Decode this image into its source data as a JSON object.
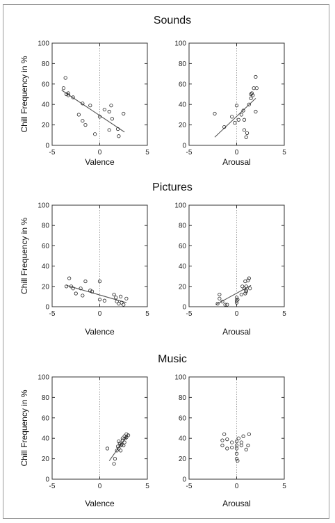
{
  "figure": {
    "sections": [
      "Sounds",
      "Pictures",
      "Music"
    ],
    "ylabel": "Chill Frequency in %"
  },
  "chart_data": [
    {
      "type": "scatter",
      "group": "Sounds",
      "xlabel": "Valence",
      "ylabel": "Chill Frequency in %",
      "xlim": [
        -5,
        5
      ],
      "ylim": [
        0,
        100
      ],
      "xticks": [
        -5,
        0,
        5
      ],
      "yticks": [
        0,
        20,
        40,
        60,
        80,
        100
      ],
      "points": [
        [
          -3.8,
          56
        ],
        [
          -3.6,
          66
        ],
        [
          -3.5,
          50
        ],
        [
          -3.3,
          49
        ],
        [
          -3.3,
          51
        ],
        [
          -2.8,
          47
        ],
        [
          -2.2,
          30
        ],
        [
          -1.8,
          41
        ],
        [
          -1.8,
          24
        ],
        [
          -1.5,
          20
        ],
        [
          -1,
          39
        ],
        [
          -0.5,
          11
        ],
        [
          0,
          28
        ],
        [
          0.5,
          35
        ],
        [
          1,
          33
        ],
        [
          1,
          15
        ],
        [
          1.2,
          39
        ],
        [
          1.3,
          26
        ],
        [
          1.9,
          16
        ],
        [
          2,
          9
        ],
        [
          2.5,
          31
        ]
      ],
      "fit": [
        [
          -4,
          54
        ],
        [
          2.6,
          13
        ]
      ]
    },
    {
      "type": "scatter",
      "group": "Sounds",
      "xlabel": "Arousal",
      "ylabel": "",
      "xlim": [
        -5,
        5
      ],
      "ylim": [
        0,
        100
      ],
      "xticks": [
        -5,
        0,
        5
      ],
      "yticks": [
        0,
        20,
        40,
        60,
        80,
        100
      ],
      "points": [
        [
          -2.3,
          31
        ],
        [
          -1.3,
          18
        ],
        [
          -0.5,
          28
        ],
        [
          -0.2,
          22
        ],
        [
          0,
          39
        ],
        [
          0.2,
          25
        ],
        [
          0.5,
          30
        ],
        [
          0.7,
          34
        ],
        [
          0.8,
          15
        ],
        [
          0.8,
          25
        ],
        [
          1,
          8
        ],
        [
          1.1,
          12
        ],
        [
          1.3,
          40
        ],
        [
          1.5,
          46
        ],
        [
          1.5,
          50
        ],
        [
          1.6,
          51
        ],
        [
          1.7,
          49
        ],
        [
          1.8,
          56
        ],
        [
          2,
          33
        ],
        [
          2,
          67
        ],
        [
          2.1,
          56
        ]
      ],
      "fit": [
        [
          -2.3,
          8
        ],
        [
          2,
          46
        ]
      ]
    },
    {
      "type": "scatter",
      "group": "Pictures",
      "xlabel": "Valence",
      "ylabel": "Chill Frequency in %",
      "xlim": [
        -5,
        5
      ],
      "ylim": [
        0,
        100
      ],
      "xticks": [
        -5,
        0,
        5
      ],
      "yticks": [
        0,
        20,
        40,
        60,
        80,
        100
      ],
      "points": [
        [
          -3.5,
          20
        ],
        [
          -3.2,
          28
        ],
        [
          -3,
          20
        ],
        [
          -2.8,
          18
        ],
        [
          -2.5,
          13
        ],
        [
          -2,
          18
        ],
        [
          -1.8,
          11
        ],
        [
          -1.5,
          25
        ],
        [
          -1,
          16
        ],
        [
          -0.8,
          15
        ],
        [
          0,
          7
        ],
        [
          0,
          25
        ],
        [
          0.5,
          6
        ],
        [
          1.5,
          12
        ],
        [
          1.7,
          9
        ],
        [
          1.8,
          5
        ],
        [
          2,
          3
        ],
        [
          2.2,
          10
        ],
        [
          2.3,
          4
        ],
        [
          2.5,
          2
        ],
        [
          2.8,
          8
        ]
      ],
      "fit": [
        [
          -3.5,
          21
        ],
        [
          2.8,
          4
        ]
      ]
    },
    {
      "type": "scatter",
      "group": "Pictures",
      "xlabel": "Arousal",
      "ylabel": "",
      "xlim": [
        -5,
        5
      ],
      "ylim": [
        0,
        100
      ],
      "xticks": [
        -5,
        0,
        5
      ],
      "yticks": [
        0,
        20,
        40,
        60,
        80,
        100
      ],
      "points": [
        [
          -2,
          3
        ],
        [
          -1.8,
          8
        ],
        [
          -1.8,
          12
        ],
        [
          -1.5,
          5
        ],
        [
          -1.2,
          2
        ],
        [
          -1,
          2
        ],
        [
          0,
          4
        ],
        [
          0,
          6
        ],
        [
          0,
          9
        ],
        [
          0.1,
          7
        ],
        [
          0.5,
          12
        ],
        [
          0.6,
          20
        ],
        [
          0.8,
          18
        ],
        [
          0.9,
          13
        ],
        [
          0.9,
          25
        ],
        [
          1,
          15
        ],
        [
          1,
          16
        ],
        [
          1,
          20
        ],
        [
          1.2,
          26
        ],
        [
          1.3,
          28
        ],
        [
          1.4,
          18
        ]
      ],
      "fit": [
        [
          -2.2,
          2
        ],
        [
          1.5,
          21
        ]
      ]
    },
    {
      "type": "scatter",
      "group": "Music",
      "xlabel": "Valence",
      "ylabel": "Chill Frequency in %",
      "xlim": [
        -5,
        5
      ],
      "ylim": [
        0,
        100
      ],
      "xticks": [
        -5,
        0,
        5
      ],
      "yticks": [
        0,
        20,
        40,
        60,
        80,
        100
      ],
      "points": [
        [
          0.8,
          30
        ],
        [
          1.5,
          15
        ],
        [
          1.6,
          20
        ],
        [
          1.8,
          28
        ],
        [
          1.9,
          32
        ],
        [
          2,
          30
        ],
        [
          2,
          37
        ],
        [
          2.1,
          35
        ],
        [
          2.2,
          28
        ],
        [
          2.2,
          33
        ],
        [
          2.3,
          34
        ],
        [
          2.4,
          38
        ],
        [
          2.4,
          40
        ],
        [
          2.5,
          33
        ],
        [
          2.6,
          36
        ],
        [
          2.6,
          42
        ],
        [
          2.7,
          40
        ],
        [
          2.8,
          41
        ],
        [
          2.8,
          44
        ],
        [
          3,
          43
        ]
      ],
      "fit": [
        [
          1,
          18
        ],
        [
          3,
          44
        ]
      ]
    },
    {
      "type": "scatter",
      "group": "Music",
      "xlabel": "Arousal",
      "ylabel": "",
      "xlim": [
        -5,
        5
      ],
      "ylim": [
        0,
        100
      ],
      "xticks": [
        -5,
        0,
        5
      ],
      "yticks": [
        0,
        20,
        40,
        60,
        80,
        100
      ],
      "points": [
        [
          -1.5,
          33
        ],
        [
          -1.5,
          38
        ],
        [
          -1.3,
          44
        ],
        [
          -1,
          30
        ],
        [
          -1,
          39
        ],
        [
          -0.5,
          31
        ],
        [
          -0.5,
          36
        ],
        [
          0,
          20
        ],
        [
          0,
          25
        ],
        [
          0,
          30
        ],
        [
          0,
          33
        ],
        [
          0,
          37
        ],
        [
          0.1,
          18
        ],
        [
          0.2,
          40
        ],
        [
          0.5,
          33
        ],
        [
          0.5,
          36
        ],
        [
          0.7,
          42
        ],
        [
          1,
          29
        ],
        [
          1.2,
          33
        ],
        [
          1.3,
          44
        ]
      ],
      "fit": null
    }
  ]
}
